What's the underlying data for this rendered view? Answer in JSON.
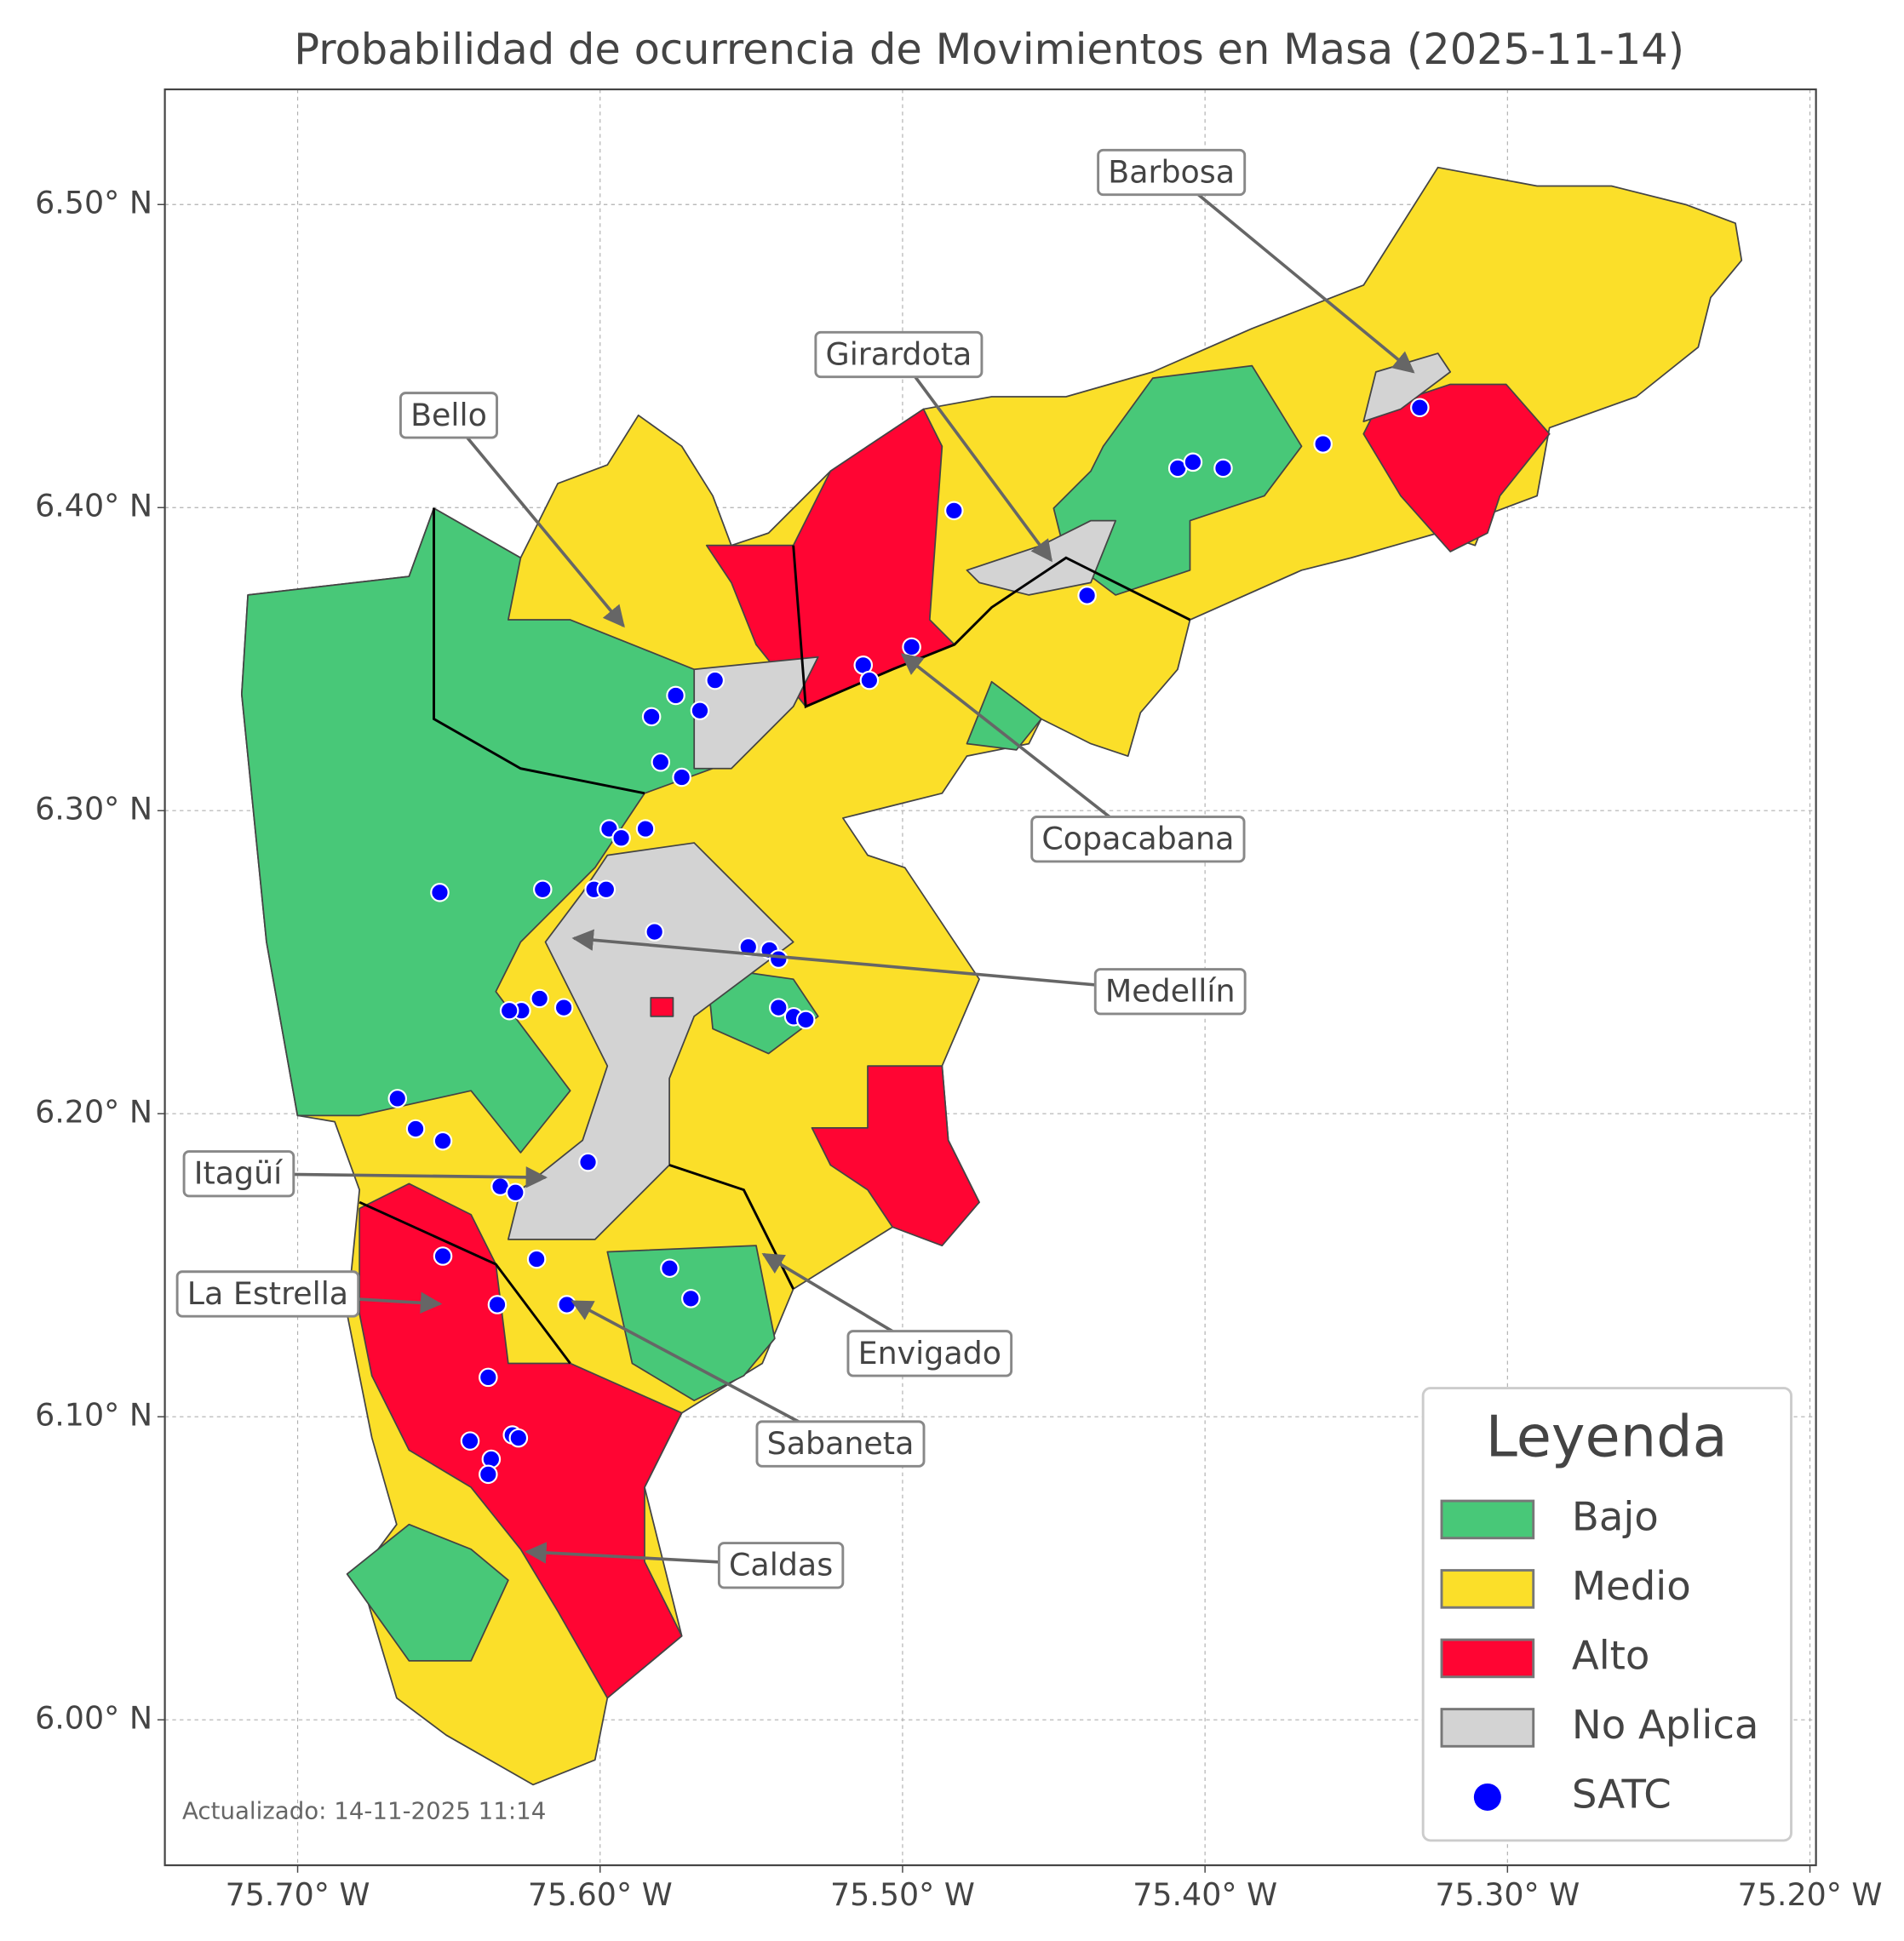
{
  "chart_data": {
    "type": "map",
    "title": "Probabilidad de ocurrencia de Movimientos en Masa (2025-11-14)",
    "xlim": [
      -75.7439,
      -75.198
    ],
    "ylim": [
      5.952,
      6.538
    ],
    "xticks": [
      {
        "value": -75.7,
        "label": "75.70° W"
      },
      {
        "value": -75.6,
        "label": "75.60° W"
      },
      {
        "value": -75.5,
        "label": "75.50° W"
      },
      {
        "value": -75.4,
        "label": "75.40° W"
      },
      {
        "value": -75.3,
        "label": "75.30° W"
      },
      {
        "value": -75.2,
        "label": "75.20° W"
      }
    ],
    "yticks": [
      {
        "value": 6.0,
        "label": "6.00° N"
      },
      {
        "value": 6.1,
        "label": "6.10° N"
      },
      {
        "value": 6.2,
        "label": "6.20° N"
      },
      {
        "value": 6.3,
        "label": "6.30° N"
      },
      {
        "value": 6.4,
        "label": "6.40° N"
      },
      {
        "value": 6.5,
        "label": "6.50° N"
      }
    ],
    "grid": true,
    "legend": {
      "title": "Leyenda",
      "position": "lower right",
      "entries": [
        {
          "name": "Bajo",
          "color": "#48c878"
        },
        {
          "name": "Medio",
          "color": "#fbdf29"
        },
        {
          "name": "Alto",
          "color": "#ff0533"
        },
        {
          "name": "No Aplica",
          "color": "#d3d3d3"
        }
      ]
    },
    "satc": {
      "name": "SATC",
      "color": "#0000ff",
      "x": [
        -75.483,
        -75.409,
        -75.404,
        -75.394,
        -75.361,
        -75.329,
        -75.439,
        -75.497,
        -75.513,
        -75.511,
        -75.562,
        -75.575,
        -75.567,
        -75.583,
        -75.58,
        -75.573,
        -75.597,
        -75.593,
        -75.585,
        -75.653,
        -75.619,
        -75.602,
        -75.598,
        -75.582,
        -75.551,
        -75.544,
        -75.541,
        -75.541,
        -75.536,
        -75.532,
        -75.62,
        -75.612,
        -75.626,
        -75.63,
        -75.667,
        -75.661,
        -75.652,
        -75.604,
        -75.633,
        -75.628,
        -75.652,
        -75.621,
        -75.577,
        -75.57,
        -75.611,
        -75.634,
        -75.637,
        -75.643,
        -75.629,
        -75.627,
        -75.636,
        -75.637
      ],
      "y": [
        6.399,
        6.413,
        6.415,
        6.413,
        6.421,
        6.433,
        6.371,
        6.354,
        6.348,
        6.343,
        6.343,
        6.338,
        6.333,
        6.331,
        6.316,
        6.311,
        6.294,
        6.291,
        6.294,
        6.273,
        6.274,
        6.274,
        6.274,
        6.26,
        6.255,
        6.254,
        6.251,
        6.235,
        6.232,
        6.231,
        6.238,
        6.235,
        6.234,
        6.234,
        6.205,
        6.195,
        6.191,
        6.184,
        6.176,
        6.174,
        6.153,
        6.152,
        6.149,
        6.139,
        6.137,
        6.137,
        6.113,
        6.092,
        6.094,
        6.093,
        6.086,
        6.081
      ]
    },
    "annotations": [
      "Barbosa",
      "Girardota",
      "Bello",
      "Copacabana",
      "Medellín",
      "Itagüí",
      "La Estrella",
      "Envigado",
      "Sabaneta",
      "Caldas"
    ],
    "footnote": "Actualizado: 14-11-2025 11:14"
  }
}
